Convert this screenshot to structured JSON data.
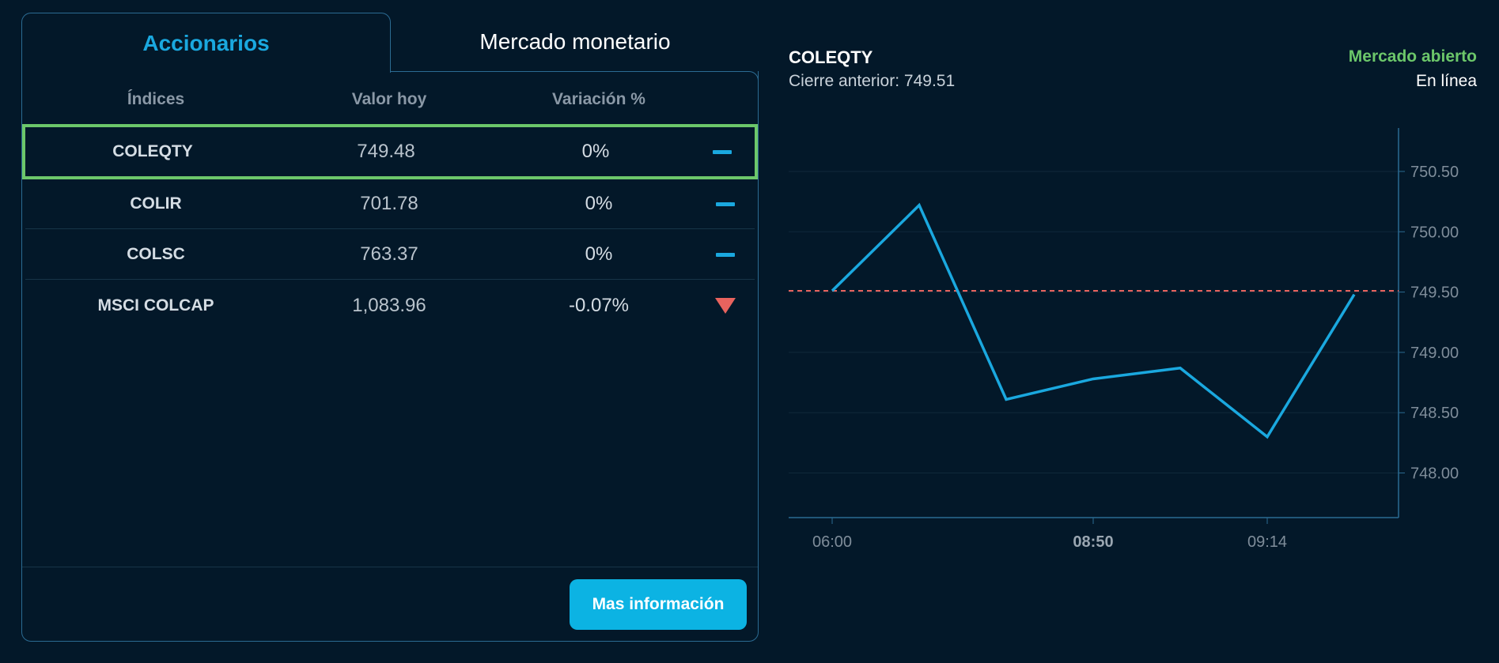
{
  "tabs": [
    {
      "label": "Accionarios",
      "active": true
    },
    {
      "label": "Mercado monetario",
      "active": false
    }
  ],
  "table": {
    "headers": [
      "Índices",
      "Valor hoy",
      "Variación %"
    ],
    "rows": [
      {
        "name": "COLEQTY",
        "value": "749.48",
        "variation": "0%",
        "trend": "flat",
        "selected": true
      },
      {
        "name": "COLIR",
        "value": "701.78",
        "variation": "0%",
        "trend": "flat"
      },
      {
        "name": "COLSC",
        "value": "763.37",
        "variation": "0%",
        "trend": "flat"
      },
      {
        "name": "MSCI COLCAP",
        "value": "1,083.96",
        "variation": "-0.07%",
        "trend": "down"
      }
    ]
  },
  "button": {
    "label": "Mas información"
  },
  "chart_panel": {
    "title": "COLEQTY",
    "prev_close_label": "Cierre anterior:",
    "prev_close_value": "749.51",
    "market_status": "Mercado abierto",
    "connection_status": "En línea"
  },
  "colors": {
    "line": "#1aa8df",
    "reference": "#e8635e",
    "open": "#6cc76a",
    "accent": "#0cb3e3"
  },
  "chart_data": {
    "type": "line",
    "x": [
      "06:00",
      "",
      "",
      "08:50",
      "",
      "09:14",
      ""
    ],
    "y": [
      749.51,
      750.22,
      748.61,
      748.78,
      748.87,
      748.3,
      749.48
    ],
    "x_tick_labels": [
      "06:00",
      "08:50",
      "09:14"
    ],
    "x_tick_indices": [
      0,
      3,
      5
    ],
    "y_ticks": [
      "750.50",
      "750.00",
      "749.50",
      "749.00",
      "748.50",
      "748.00"
    ],
    "y_tick_values": [
      750.5,
      750.0,
      749.5,
      749.0,
      748.5,
      748.0
    ],
    "ylim": [
      747.63,
      750.86
    ],
    "reference_line": 749.51,
    "grid": true,
    "y_axis_side": "right"
  }
}
